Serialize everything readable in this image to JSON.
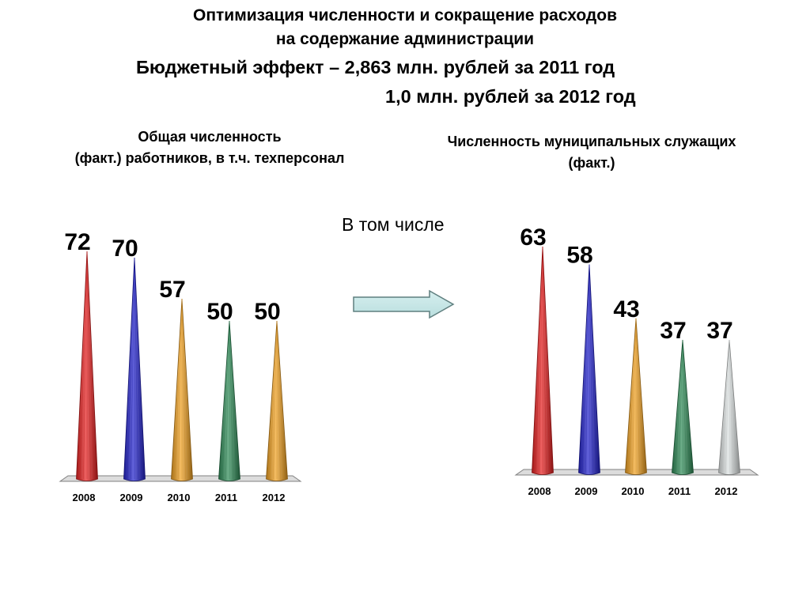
{
  "header": {
    "title_line1": "Оптимизация численности и сокращение расходов",
    "title_line2": "на содержание администрации",
    "effect_line1": "Бюджетный эффект – 2,863 млн. рублей за 2011 год",
    "effect_line2": "1,0 млн. рублей за 2012 год"
  },
  "left_chart_title": {
    "line1": "Общая численность",
    "line2": "(факт.) работников, в т.ч. техперсонал"
  },
  "right_chart_title": {
    "line1": "Численность муниципальных служащих",
    "line2": "(факт.)"
  },
  "middle_note": "В том числе",
  "colors": {
    "red": "#e61e1e",
    "blue": "#2222cc",
    "orange": "#f0a020",
    "green": "#2e8b57",
    "silver": "#dde2e2"
  },
  "icons": [
    "right-arrow-icon"
  ],
  "chart_data": [
    {
      "type": "bar",
      "categories": [
        "2008",
        "2009",
        "2010",
        "2011",
        "2012"
      ],
      "values": [
        72,
        70,
        57,
        50,
        50
      ],
      "bar_colors": [
        "red",
        "blue",
        "orange",
        "green",
        "orange"
      ],
      "ylim": [
        0,
        72
      ],
      "grid": false
    },
    {
      "type": "bar",
      "categories": [
        "2008",
        "2009",
        "2010",
        "2011",
        "2012"
      ],
      "values": [
        63,
        58,
        43,
        37,
        37
      ],
      "bar_colors": [
        "red",
        "blue",
        "orange",
        "green",
        "silver"
      ],
      "ylim": [
        0,
        63
      ],
      "grid": false
    }
  ]
}
